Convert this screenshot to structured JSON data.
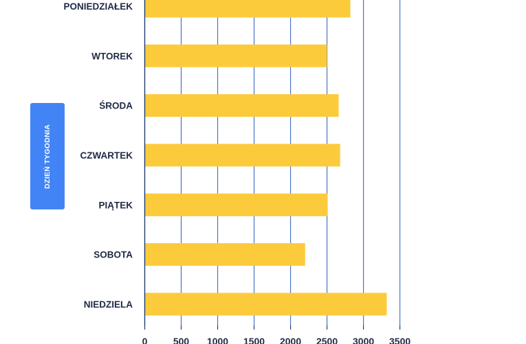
{
  "chart_data": {
    "type": "bar",
    "orientation": "horizontal",
    "categories": [
      "PONIEDZIAŁEK",
      "WTOREK",
      "ŚRODA",
      "CZWARTEK",
      "PIĄTEK",
      "SOBOTA",
      "NIEDZIELA"
    ],
    "values": [
      2820,
      2500,
      2660,
      2680,
      2510,
      2200,
      3320
    ],
    "ylabel": "DZIEŃ TYGODNIA",
    "xlabel": "",
    "xlim": [
      0,
      3500
    ],
    "xticks": [
      "0",
      "500",
      "1000",
      "1500",
      "2000",
      "2500",
      "3000",
      "3500"
    ],
    "grid": "vertical",
    "colors": {
      "bar": "#fccb3c",
      "grid": "#4a74c6",
      "axis": "#1f3c70",
      "label": "#1f2a44",
      "ylabel_box": "#4284f5"
    }
  }
}
